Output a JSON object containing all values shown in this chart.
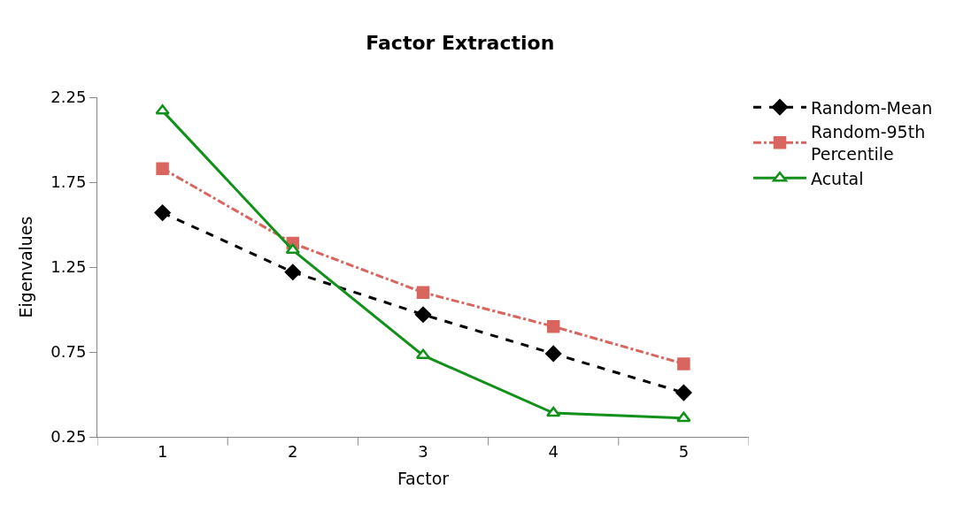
{
  "chart_data": {
    "type": "line",
    "title": "Factor Extraction",
    "xlabel": "Factor",
    "ylabel": "Eigenvalues",
    "categories": [
      "1",
      "2",
      "3",
      "4",
      "5"
    ],
    "series": [
      {
        "name": "Random-Mean",
        "color": "#000000",
        "values": [
          1.57,
          1.22,
          0.97,
          0.74,
          0.51
        ],
        "marker": "diamond",
        "line_style": "dashed"
      },
      {
        "name": "Random-95th Percentile",
        "color": "#d9655f",
        "values": [
          1.83,
          1.39,
          1.1,
          0.9,
          0.68
        ],
        "marker": "square",
        "line_style": "dashdot"
      },
      {
        "name": "Acutal",
        "color": "#12911a",
        "values": [
          2.17,
          1.35,
          0.73,
          0.39,
          0.36
        ],
        "marker": "triangle",
        "line_style": "solid"
      }
    ],
    "ylim": [
      0.25,
      2.25
    ],
    "yticks": [
      0.25,
      0.75,
      1.25,
      1.75,
      2.25
    ],
    "legend": "top right"
  }
}
